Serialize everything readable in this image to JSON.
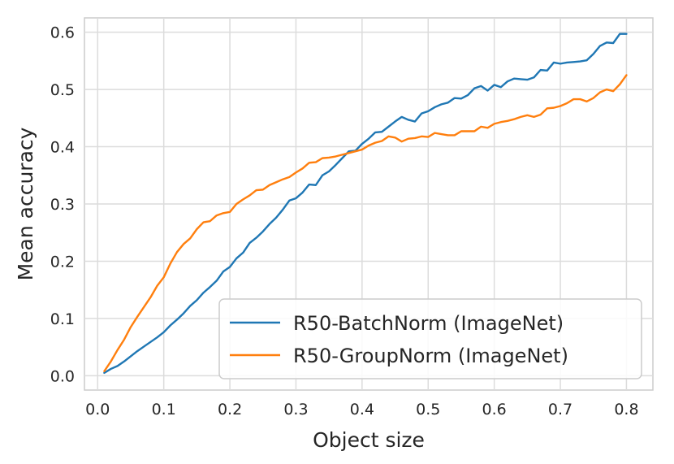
{
  "chart_data": {
    "type": "line",
    "title": "",
    "xlabel": "Object size",
    "ylabel": "Mean accuracy",
    "xlim": [
      -0.02,
      0.84
    ],
    "ylim": [
      -0.025,
      0.625
    ],
    "xticks": [
      0.0,
      0.1,
      0.2,
      0.3,
      0.4,
      0.5,
      0.6,
      0.7,
      0.8
    ],
    "xtick_labels": [
      "0.0",
      "0.1",
      "0.2",
      "0.3",
      "0.4",
      "0.5",
      "0.6",
      "0.7",
      "0.8"
    ],
    "yticks": [
      0.0,
      0.1,
      0.2,
      0.3,
      0.4,
      0.5,
      0.6
    ],
    "ytick_labels": [
      "0.0",
      "0.1",
      "0.2",
      "0.3",
      "0.4",
      "0.5",
      "0.6"
    ],
    "grid": true,
    "legend_position": "lower-right",
    "series": [
      {
        "name": "R50-BatchNorm (ImageNet)",
        "color": "#1f77b4",
        "x": [
          0.01,
          0.02,
          0.03,
          0.04,
          0.05,
          0.06,
          0.07,
          0.08,
          0.09,
          0.1,
          0.11,
          0.12,
          0.13,
          0.14,
          0.15,
          0.16,
          0.17,
          0.18,
          0.19,
          0.2,
          0.21,
          0.22,
          0.23,
          0.24,
          0.25,
          0.26,
          0.27,
          0.28,
          0.29,
          0.3,
          0.31,
          0.32,
          0.33,
          0.34,
          0.35,
          0.36,
          0.37,
          0.38,
          0.39,
          0.4,
          0.41,
          0.42,
          0.43,
          0.44,
          0.45,
          0.46,
          0.47,
          0.48,
          0.49,
          0.5,
          0.51,
          0.52,
          0.53,
          0.54,
          0.55,
          0.56,
          0.57,
          0.58,
          0.59,
          0.6,
          0.61,
          0.62,
          0.63,
          0.64,
          0.65,
          0.66,
          0.67,
          0.68,
          0.69,
          0.7,
          0.71,
          0.72,
          0.73,
          0.74,
          0.75,
          0.76,
          0.77,
          0.78,
          0.79,
          0.8
        ],
        "y": [
          0.005,
          0.012,
          0.017,
          0.025,
          0.034,
          0.043,
          0.051,
          0.059,
          0.067,
          0.076,
          0.088,
          0.098,
          0.109,
          0.122,
          0.132,
          0.145,
          0.155,
          0.166,
          0.182,
          0.19,
          0.205,
          0.215,
          0.232,
          0.241,
          0.252,
          0.265,
          0.276,
          0.29,
          0.306,
          0.31,
          0.32,
          0.334,
          0.333,
          0.35,
          0.357,
          0.368,
          0.38,
          0.392,
          0.393,
          0.405,
          0.414,
          0.425,
          0.426,
          0.435,
          0.444,
          0.452,
          0.447,
          0.444,
          0.458,
          0.462,
          0.469,
          0.474,
          0.477,
          0.485,
          0.484,
          0.49,
          0.502,
          0.506,
          0.498,
          0.508,
          0.504,
          0.514,
          0.519,
          0.518,
          0.517,
          0.521,
          0.534,
          0.533,
          0.547,
          0.545,
          0.547,
          0.548,
          0.549,
          0.551,
          0.562,
          0.576,
          0.582,
          0.581,
          0.597,
          0.597
        ]
      },
      {
        "name": "R50-GroupNorm (ImageNet)",
        "color": "#ff7f0e",
        "x": [
          0.01,
          0.02,
          0.03,
          0.04,
          0.05,
          0.06,
          0.07,
          0.08,
          0.09,
          0.1,
          0.11,
          0.12,
          0.13,
          0.14,
          0.15,
          0.16,
          0.17,
          0.18,
          0.19,
          0.2,
          0.21,
          0.22,
          0.23,
          0.24,
          0.25,
          0.26,
          0.27,
          0.28,
          0.29,
          0.3,
          0.31,
          0.32,
          0.33,
          0.34,
          0.35,
          0.36,
          0.37,
          0.38,
          0.39,
          0.4,
          0.41,
          0.42,
          0.43,
          0.44,
          0.45,
          0.46,
          0.47,
          0.48,
          0.49,
          0.5,
          0.51,
          0.52,
          0.53,
          0.54,
          0.55,
          0.56,
          0.57,
          0.58,
          0.59,
          0.6,
          0.61,
          0.62,
          0.63,
          0.64,
          0.65,
          0.66,
          0.67,
          0.68,
          0.69,
          0.7,
          0.71,
          0.72,
          0.73,
          0.74,
          0.75,
          0.76,
          0.77,
          0.78,
          0.79,
          0.8
        ],
        "y": [
          0.008,
          0.025,
          0.045,
          0.063,
          0.085,
          0.103,
          0.12,
          0.137,
          0.157,
          0.172,
          0.196,
          0.216,
          0.23,
          0.24,
          0.256,
          0.268,
          0.27,
          0.28,
          0.284,
          0.286,
          0.3,
          0.308,
          0.315,
          0.324,
          0.325,
          0.333,
          0.338,
          0.343,
          0.347,
          0.355,
          0.362,
          0.372,
          0.373,
          0.38,
          0.381,
          0.383,
          0.386,
          0.389,
          0.392,
          0.395,
          0.402,
          0.407,
          0.41,
          0.418,
          0.416,
          0.409,
          0.414,
          0.415,
          0.418,
          0.417,
          0.424,
          0.422,
          0.42,
          0.42,
          0.427,
          0.427,
          0.427,
          0.435,
          0.433,
          0.44,
          0.443,
          0.445,
          0.448,
          0.452,
          0.455,
          0.452,
          0.456,
          0.467,
          0.468,
          0.471,
          0.476,
          0.483,
          0.483,
          0.479,
          0.485,
          0.495,
          0.5,
          0.497,
          0.509,
          0.525
        ]
      }
    ]
  }
}
